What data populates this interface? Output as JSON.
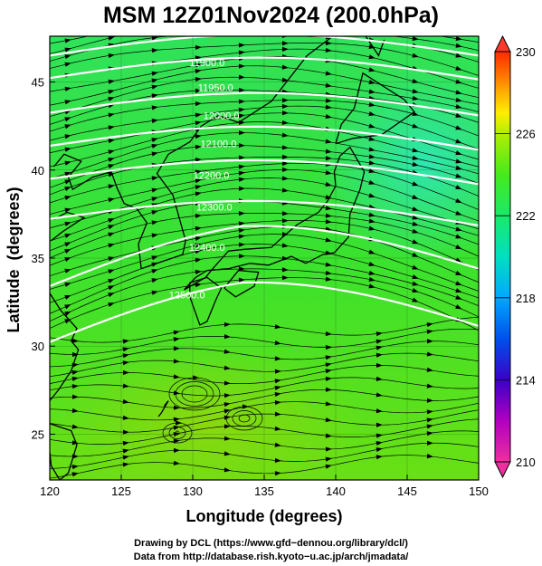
{
  "title": "MSM 12Z01Nov2024 (200.0hPa)",
  "map": {
    "x_label": "Longitude (degrees)",
    "y_label": "Latitude  (degrees)",
    "x_ticks": [
      "120",
      "125",
      "130",
      "135",
      "140",
      "145",
      "150"
    ],
    "y_ticks": [
      "25",
      "30",
      "35",
      "40",
      "45"
    ],
    "x_range": [
      120,
      150
    ],
    "y_range": [
      22.4,
      47.6
    ],
    "height_contour_labels": [
      {
        "text": "11900.0",
        "lon": 131.0,
        "lat": 45.9
      },
      {
        "text": "11950.0",
        "lon": 131.6,
        "lat": 44.5
      },
      {
        "text": "12000.0",
        "lon": 132.0,
        "lat": 42.9
      },
      {
        "text": "12100.0",
        "lon": 131.8,
        "lat": 41.3
      },
      {
        "text": "12200.0",
        "lon": 131.3,
        "lat": 39.5
      },
      {
        "text": "12300.0",
        "lon": 131.5,
        "lat": 37.7
      },
      {
        "text": "12400.0",
        "lon": 131.0,
        "lat": 35.4
      },
      {
        "text": "12500.0",
        "lon": 129.6,
        "lat": 32.7
      }
    ]
  },
  "colorbar": {
    "ticks": [
      "230",
      "226",
      "222",
      "218",
      "214",
      "210"
    ],
    "range": [
      210,
      230
    ],
    "colors": [
      "#ee2fa0",
      "#b100c0",
      "#3a00c8",
      "#0050ee",
      "#00a8ff",
      "#00e0c0",
      "#18ea6a",
      "#46ea1c",
      "#b0ee00",
      "#ffee00",
      "#ffb000",
      "#ff6a00",
      "#ff2a00"
    ]
  },
  "credits": {
    "line1": "Drawing by DCL (https://www.gfd−dennou.org/library/dcl/)",
    "line2": "Data from http://database.rish.kyoto−u.ac.jp/arch/jmadata/"
  }
}
